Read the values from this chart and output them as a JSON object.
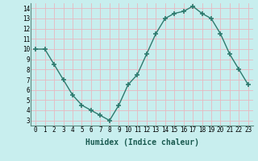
{
  "x": [
    0,
    1,
    2,
    3,
    4,
    5,
    6,
    7,
    8,
    9,
    10,
    11,
    12,
    13,
    14,
    15,
    16,
    17,
    18,
    19,
    20,
    21,
    22,
    23
  ],
  "y": [
    10.0,
    10.0,
    8.5,
    7.0,
    5.5,
    4.5,
    4.0,
    3.5,
    3.0,
    4.5,
    6.5,
    7.5,
    9.5,
    11.5,
    13.0,
    13.5,
    13.7,
    14.2,
    13.5,
    13.0,
    11.5,
    9.5,
    8.0,
    6.5
  ],
  "line_color": "#2d7a6e",
  "marker": "+",
  "marker_size": 4,
  "marker_lw": 1.2,
  "bg_color": "#c8eeee",
  "grid_color": "#e8b8c0",
  "xlabel": "Humidex (Indice chaleur)",
  "xlim": [
    -0.5,
    23.5
  ],
  "ylim": [
    2.5,
    14.5
  ],
  "yticks": [
    3,
    4,
    5,
    6,
    7,
    8,
    9,
    10,
    11,
    12,
    13,
    14
  ],
  "xticks": [
    0,
    1,
    2,
    3,
    4,
    5,
    6,
    7,
    8,
    9,
    10,
    11,
    12,
    13,
    14,
    15,
    16,
    17,
    18,
    19,
    20,
    21,
    22,
    23
  ],
  "xtick_labels": [
    "0",
    "1",
    "2",
    "3",
    "4",
    "5",
    "6",
    "7",
    "8",
    "9",
    "10",
    "11",
    "12",
    "13",
    "14",
    "15",
    "16",
    "17",
    "18",
    "19",
    "20",
    "21",
    "22",
    "23"
  ],
  "tick_fontsize": 5.5,
  "label_fontsize": 7,
  "line_width": 1.0
}
